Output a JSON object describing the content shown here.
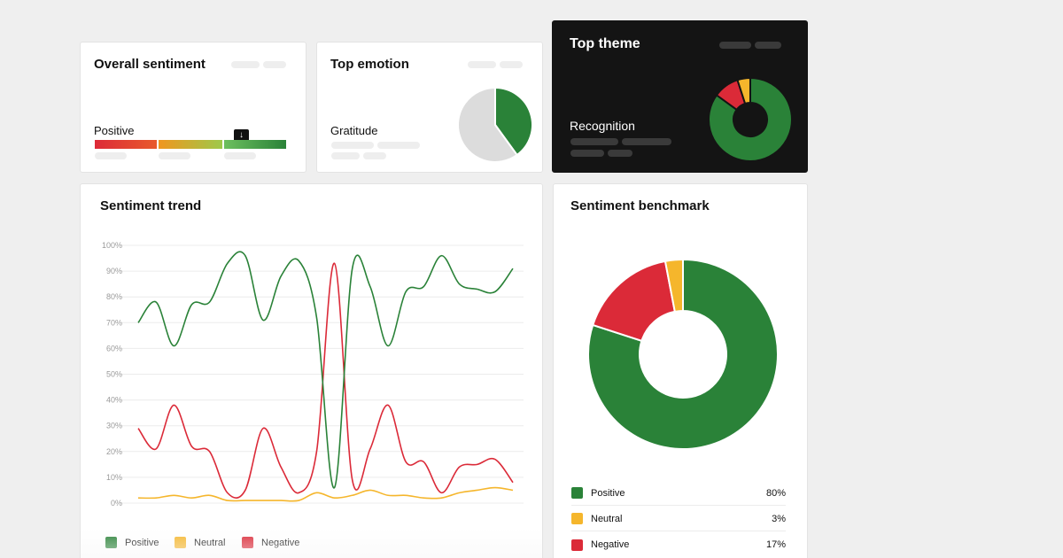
{
  "colors": {
    "positive": "#2a8238",
    "neutral": "#f5b62c",
    "negative": "#db2a38",
    "pie_rest": "#dcdcdc"
  },
  "overall_sentiment": {
    "title": "Overall sentiment",
    "value": "Positive",
    "marker_icon": "arrow-down-icon",
    "marker_glyph": "↓"
  },
  "top_emotion": {
    "title": "Top emotion",
    "value": "Gratitude",
    "share_percent": 40
  },
  "top_theme": {
    "title": "Top theme",
    "value": "Recognition",
    "slices_percent": {
      "positive": 85,
      "negative": 10,
      "neutral": 5
    }
  },
  "trend": {
    "title": "Sentiment trend",
    "legend": [
      "Positive",
      "Neutral",
      "Negative"
    ],
    "chart_data": {
      "type": "line",
      "y_ticks": [
        "100%",
        "90%",
        "80%",
        "70%",
        "60%",
        "50%",
        "40%",
        "30%",
        "20%",
        "10%",
        "0%"
      ],
      "ylim": [
        0,
        100
      ],
      "series": [
        {
          "name": "Positive",
          "values": [
            70,
            78,
            61,
            77,
            78,
            93,
            96,
            71,
            88,
            94,
            72,
            6,
            91,
            84,
            61,
            82,
            84,
            96,
            85,
            83,
            82,
            91
          ]
        },
        {
          "name": "Neutral",
          "values": [
            2,
            2,
            3,
            2,
            3,
            1,
            1,
            1,
            1,
            1,
            4,
            2,
            3,
            5,
            3,
            3,
            2,
            2,
            4,
            5,
            6,
            5
          ]
        },
        {
          "name": "Negative",
          "values": [
            29,
            21,
            38,
            22,
            20,
            4,
            5,
            29,
            14,
            4,
            20,
            93,
            9,
            21,
            38,
            16,
            16,
            4,
            14,
            15,
            17,
            8
          ]
        }
      ]
    }
  },
  "benchmark": {
    "title": "Sentiment benchmark",
    "chart_data": {
      "type": "pie",
      "slices": [
        {
          "name": "Positive",
          "value": 80,
          "label": "80%"
        },
        {
          "name": "Neutral",
          "value": 3,
          "label": "3%"
        },
        {
          "name": "Negative",
          "value": 17,
          "label": "17%"
        }
      ]
    }
  }
}
